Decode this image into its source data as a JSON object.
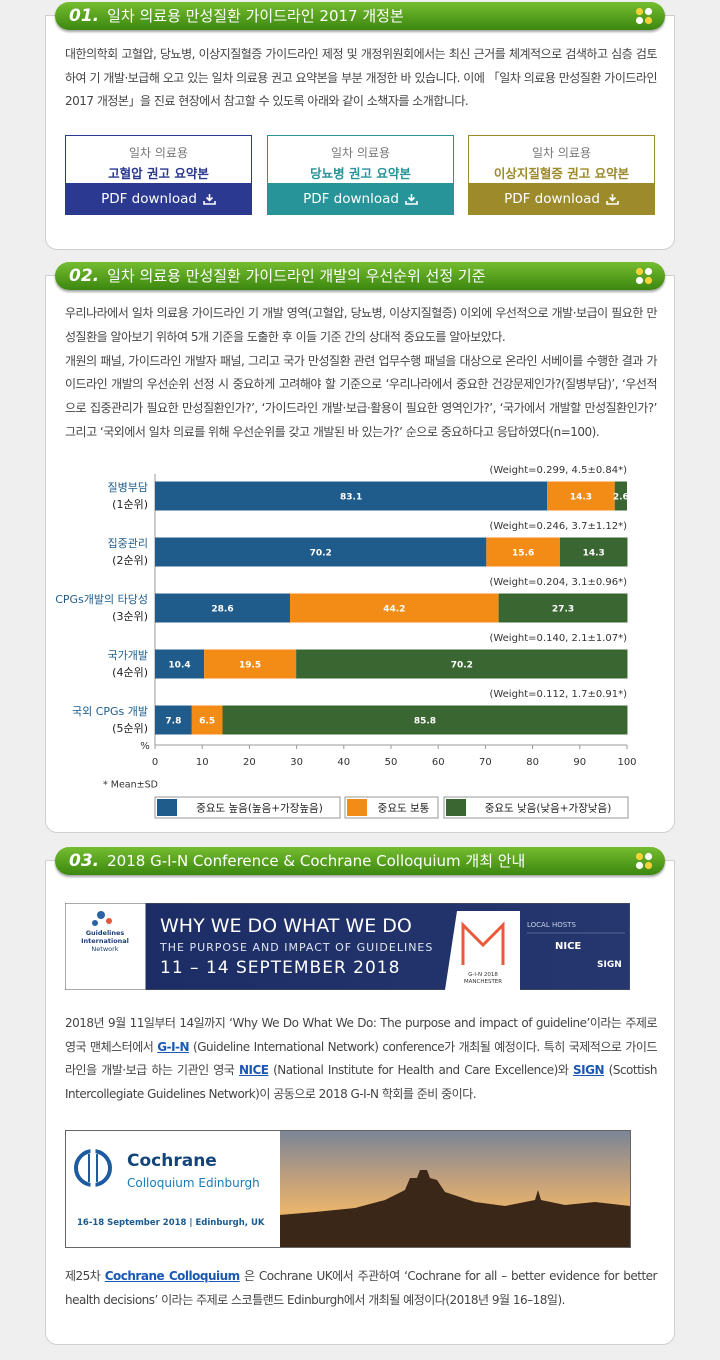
{
  "sections": [
    {
      "number": "01.",
      "title": "일차 의료용 만성질환 가이드라인 2017 개정본",
      "paragraphs": [
        "대한의학회 고혈압, 당뇨병, 이상지질혈증 가이드라인 제정 및 개정위원회에서는 최신 근거를 체계적으로 검색하고 심층 검토하여 기 개발·보급해 오고 있는 일차 의료용 권고 요약본을 부분 개정한 바 있습니다. 이에 「일차 의료용 만성질환 가이드라인 2017 개정본」을 진료 현장에서 참고할 수 있도록 아래와 같이 소책자를 소개합니다."
      ],
      "downloads": [
        {
          "caption": "일차 의료용",
          "title": "고혈압 권고 요약본",
          "button": "PDF download",
          "color": "#2b3990"
        },
        {
          "caption": "일차 의료용",
          "title": "당뇨병 권고 요약본",
          "button": "PDF download",
          "color": "#27949a"
        },
        {
          "caption": "일차 의료용",
          "title": "이상지질혈증 권고 요약본",
          "button": "PDF download",
          "color": "#9c8a2b"
        }
      ]
    },
    {
      "number": "02.",
      "title": "일차 의료용 만성질환 가이드라인 개발의 우선순위 선정 기준",
      "paragraphs": [
        "우리나라에서 일차 의료용 가이드라인 기 개발 영역(고혈압, 당뇨병, 이상지질혈증) 이외에 우선적으로 개발·보급이 필요한 만성질환을 알아보기 위하여 5개 기준을 도출한 후 이들 기준 간의 상대적 중요도를 알아보았다.",
        "개원의 패널, 가이드라인 개발자 패널, 그리고 국가 만성질환 관련 업무수행 패널을 대상으로 온라인 서베이를 수행한 결과 가이드라인 개발의 우선순위 선정 시 중요하게 고려해야 할 기준으로 ‘우리나라에서 중요한 건강문제인가?(질병부담)’, ‘우선적으로 집중관리가 필요한 만성질환인가?’, ‘가이드라인 개발·보급·활용이 필요한 영역인가?’, ‘국가에서 개발할 만성질환인가?’ 그리고 ‘국외에서 일차 의료를 위해 우선순위를 갖고 개발된 바 있는가?’ 순으로 중요하다고 응답하였다(n=100)."
      ]
    },
    {
      "number": "03.",
      "title": "2018 G-I-N Conference & Cochrane Colloquium 개최 안내",
      "gin_banner": {
        "org": [
          "Guidelines",
          "International",
          "Network"
        ],
        "headline": "WHY WE DO WHAT WE DO",
        "subline": "THE PURPOSE AND IMPACT OF GUIDELINES",
        "dates": "11 – 14 SEPTEMBER 2018",
        "event": [
          "G-I-N 2018",
          "MANCHESTER"
        ],
        "hosts_label": "LOCAL HOSTS",
        "hosts": [
          "NICE",
          "SIGN"
        ]
      },
      "gin_paragraph": [
        {
          "text": "2018년 9월 11일부터 14일까지 ‘Why We Do What We Do: The purpose and impact of guideline’이라는 주제로 영국 맨체스터에서 "
        },
        {
          "link": "G-I-N"
        },
        {
          "text": " (Guideline International Network) conference가 개최될 예정이다. 특히 국제적으로 가이드라인을 개발·보급 하는 기관인 영국 "
        },
        {
          "link": "NICE"
        },
        {
          "text": " (National Institute for Health and Care Excellence)와 "
        },
        {
          "link": "SIGN"
        },
        {
          "text": " (Scottish Intercollegiate Guidelines Network)이 공동으로 2018 G-I-N 학회를 준비 중이다."
        }
      ],
      "cochrane_banner": {
        "name": "Cochrane",
        "event": "Colloquium Edinburgh",
        "dates": "16-18 September 2018 | Edinburgh, UK"
      },
      "cochrane_paragraph": [
        {
          "text": "제25차 "
        },
        {
          "link": "Cochrane Colloquium"
        },
        {
          "text": " 은 Cochrane UK에서 주관하여 ‘Cochrane for all – better evidence for better health decisions’ 이라는 주제로 스코틀랜드 Edinburgh에서 개최될 예정이다(2018년 9월 16–18일)."
        }
      ]
    }
  ],
  "chart_data": {
    "type": "bar",
    "orientation": "horizontal",
    "stacked": true,
    "categories": [
      [
        "질병부담",
        "(1순위)"
      ],
      [
        "집중관리",
        "(2순위)"
      ],
      [
        "CPGs개발의 타당성",
        "(3순위)"
      ],
      [
        "국가개발",
        "(4순위)"
      ],
      [
        "국외 CPGs 개발",
        "(5순위)"
      ]
    ],
    "annotations": [
      "(Weight=0.299, 4.5±0.84*)",
      "(Weight=0.246, 3.7±1.12*)",
      "(Weight=0.204, 3.1±0.96*)",
      "(Weight=0.140, 2.1±1.07*)",
      "(Weight=0.112, 1.7±0.91*)"
    ],
    "series": [
      {
        "name": "중요도 높음(높음+가장높음)",
        "color": "#1f5c8b",
        "values": [
          83.1,
          70.2,
          28.6,
          10.4,
          7.8
        ]
      },
      {
        "name": "중요도 보통",
        "color": "#f28c16",
        "values": [
          14.3,
          15.6,
          44.2,
          19.5,
          6.5
        ]
      },
      {
        "name": "중요도 낮음(낮음+가장낮음)",
        "color": "#3a6632",
        "values": [
          2.6,
          14.3,
          27.3,
          70.2,
          85.8
        ]
      }
    ],
    "xlabel": "%",
    "xlim": [
      0,
      100
    ],
    "xticks": [
      0,
      10,
      20,
      30,
      40,
      50,
      60,
      70,
      80,
      90,
      100
    ],
    "note": "* Mean±SD",
    "legend": "bottom"
  }
}
